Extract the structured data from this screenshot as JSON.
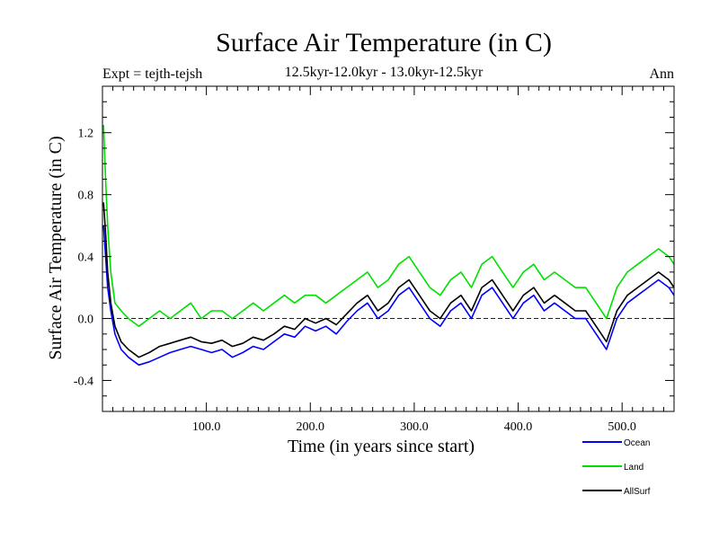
{
  "chart_data": {
    "type": "line",
    "title": "Surface Air Temperature (in C)",
    "subtitle": "12.5kyr-12.0kyr - 13.0kyr-12.5kyr",
    "left_label": "Expt = tejth-tejsh",
    "right_label": "Ann",
    "xlabel": "Time (in years since start)",
    "ylabel": "Surface Air Temperature (in C)",
    "xlim": [
      0,
      550
    ],
    "ylim": [
      -0.6,
      1.5
    ],
    "xticks": [
      100,
      200,
      300,
      400,
      500
    ],
    "xtick_labels": [
      "100.0",
      "200.0",
      "300.0",
      "400.0",
      "500.0"
    ],
    "yticks": [
      -0.4,
      0.0,
      0.4,
      0.8,
      1.2
    ],
    "ytick_labels": [
      "-0.4",
      "0.0",
      "0.4",
      "0.8",
      "1.2"
    ],
    "zero_line": 0.0,
    "legend_position": "bottom-right",
    "series": [
      {
        "name": "Ocean",
        "color": "#0000ff",
        "x": [
          1,
          3,
          5,
          8,
          12,
          18,
          25,
          35,
          45,
          55,
          65,
          75,
          85,
          95,
          105,
          115,
          125,
          135,
          145,
          155,
          165,
          175,
          185,
          195,
          205,
          215,
          225,
          235,
          245,
          255,
          265,
          275,
          285,
          295,
          305,
          315,
          325,
          335,
          345,
          355,
          365,
          375,
          385,
          395,
          405,
          415,
          425,
          435,
          445,
          455,
          465,
          475,
          485,
          495,
          505,
          515,
          525,
          535,
          545,
          550
        ],
        "values": [
          0.6,
          0.4,
          0.2,
          0.05,
          -0.1,
          -0.2,
          -0.25,
          -0.3,
          -0.28,
          -0.25,
          -0.22,
          -0.2,
          -0.18,
          -0.2,
          -0.22,
          -0.2,
          -0.25,
          -0.22,
          -0.18,
          -0.2,
          -0.15,
          -0.1,
          -0.12,
          -0.05,
          -0.08,
          -0.05,
          -0.1,
          -0.02,
          0.05,
          0.1,
          0.0,
          0.05,
          0.15,
          0.2,
          0.1,
          0.0,
          -0.05,
          0.05,
          0.1,
          0.0,
          0.15,
          0.2,
          0.1,
          0.0,
          0.1,
          0.15,
          0.05,
          0.1,
          0.05,
          0.0,
          0.0,
          -0.1,
          -0.2,
          0.0,
          0.1,
          0.15,
          0.2,
          0.25,
          0.2,
          0.15
        ]
      },
      {
        "name": "Land",
        "color": "#00e000",
        "x": [
          1,
          3,
          5,
          8,
          12,
          18,
          25,
          35,
          45,
          55,
          65,
          75,
          85,
          95,
          105,
          115,
          125,
          135,
          145,
          155,
          165,
          175,
          185,
          195,
          205,
          215,
          225,
          235,
          245,
          255,
          265,
          275,
          285,
          295,
          305,
          315,
          325,
          335,
          345,
          355,
          365,
          375,
          385,
          395,
          405,
          415,
          425,
          435,
          445,
          455,
          465,
          475,
          485,
          495,
          505,
          515,
          525,
          535,
          545,
          550
        ],
        "values": [
          1.25,
          0.9,
          0.6,
          0.3,
          0.1,
          0.05,
          0.0,
          -0.05,
          0.0,
          0.05,
          0.0,
          0.05,
          0.1,
          0.0,
          0.05,
          0.05,
          0.0,
          0.05,
          0.1,
          0.05,
          0.1,
          0.15,
          0.1,
          0.15,
          0.15,
          0.1,
          0.15,
          0.2,
          0.25,
          0.3,
          0.2,
          0.25,
          0.35,
          0.4,
          0.3,
          0.2,
          0.15,
          0.25,
          0.3,
          0.2,
          0.35,
          0.4,
          0.3,
          0.2,
          0.3,
          0.35,
          0.25,
          0.3,
          0.25,
          0.2,
          0.2,
          0.1,
          0.0,
          0.2,
          0.3,
          0.35,
          0.4,
          0.45,
          0.4,
          0.35
        ]
      },
      {
        "name": "AllSurf",
        "color": "#000000",
        "x": [
          1,
          3,
          5,
          8,
          12,
          18,
          25,
          35,
          45,
          55,
          65,
          75,
          85,
          95,
          105,
          115,
          125,
          135,
          145,
          155,
          165,
          175,
          185,
          195,
          205,
          215,
          225,
          235,
          245,
          255,
          265,
          275,
          285,
          295,
          305,
          315,
          325,
          335,
          345,
          355,
          365,
          375,
          385,
          395,
          405,
          415,
          425,
          435,
          445,
          455,
          465,
          475,
          485,
          495,
          505,
          515,
          525,
          535,
          545,
          550
        ],
        "values": [
          0.75,
          0.55,
          0.3,
          0.1,
          -0.05,
          -0.15,
          -0.2,
          -0.25,
          -0.22,
          -0.18,
          -0.16,
          -0.14,
          -0.12,
          -0.15,
          -0.16,
          -0.14,
          -0.18,
          -0.16,
          -0.12,
          -0.14,
          -0.1,
          -0.05,
          -0.07,
          0.0,
          -0.03,
          0.0,
          -0.04,
          0.03,
          0.1,
          0.15,
          0.05,
          0.1,
          0.2,
          0.25,
          0.15,
          0.05,
          0.0,
          0.1,
          0.15,
          0.05,
          0.2,
          0.25,
          0.15,
          0.05,
          0.15,
          0.2,
          0.1,
          0.15,
          0.1,
          0.05,
          0.05,
          -0.05,
          -0.15,
          0.05,
          0.15,
          0.2,
          0.25,
          0.3,
          0.25,
          0.2
        ]
      }
    ]
  }
}
